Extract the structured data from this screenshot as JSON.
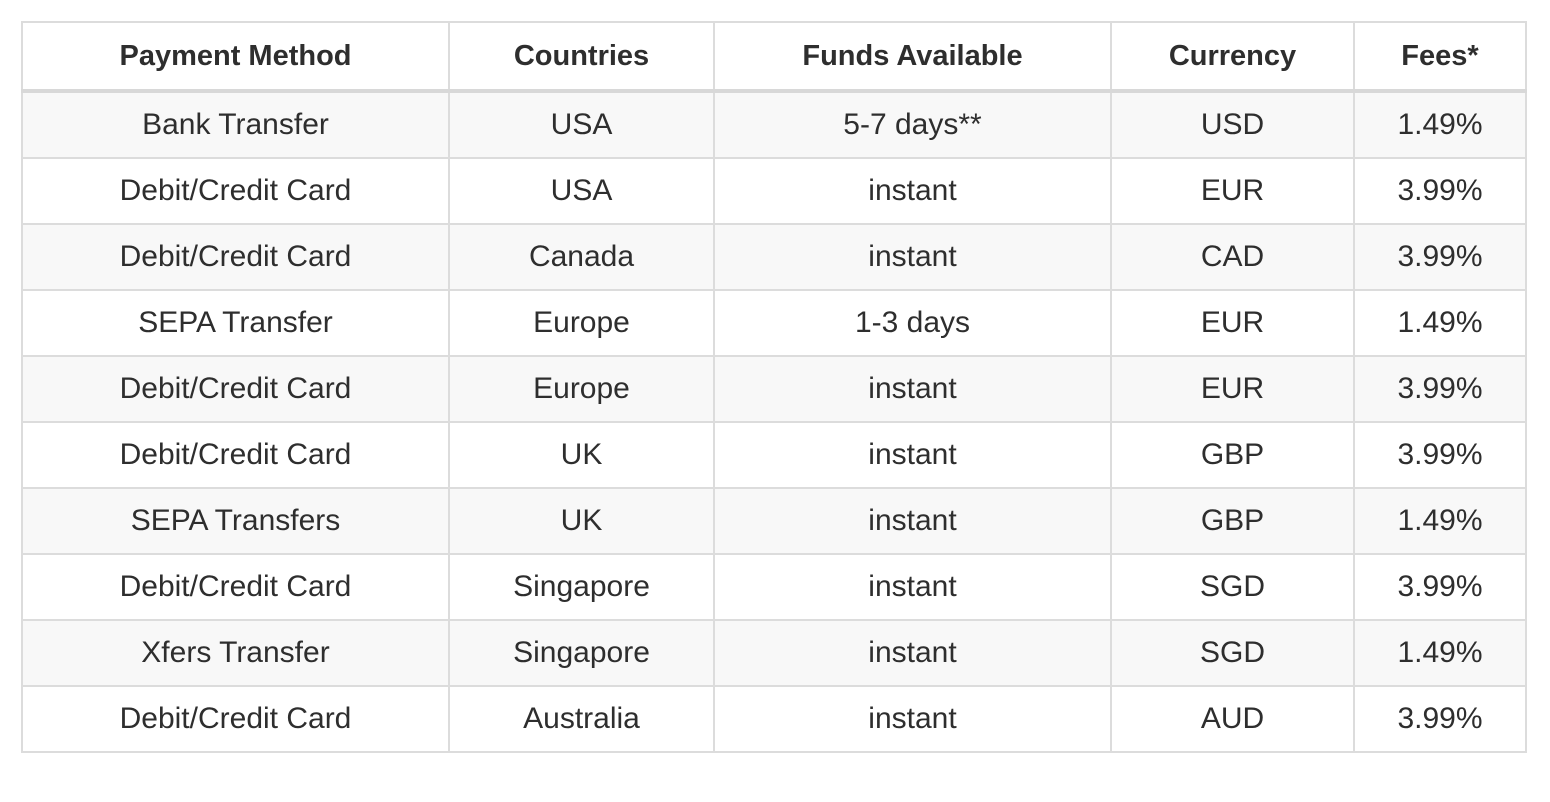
{
  "table": {
    "headers": [
      "Payment Method",
      "Countries",
      "Funds Available",
      "Currency",
      "Fees*"
    ],
    "rows": [
      [
        "Bank Transfer",
        "USA",
        "5-7 days**",
        "USD",
        "1.49%"
      ],
      [
        "Debit/Credit Card",
        "USA",
        "instant",
        "EUR",
        "3.99%"
      ],
      [
        "Debit/Credit Card",
        "Canada",
        "instant",
        "CAD",
        "3.99%"
      ],
      [
        "SEPA Transfer",
        "Europe",
        "1-3 days",
        "EUR",
        "1.49%"
      ],
      [
        "Debit/Credit Card",
        "Europe",
        "instant",
        "EUR",
        "3.99%"
      ],
      [
        "Debit/Credit Card",
        "UK",
        "instant",
        "GBP",
        "3.99%"
      ],
      [
        "SEPA Transfers",
        "UK",
        "instant",
        "GBP",
        "1.49%"
      ],
      [
        "Debit/Credit Card",
        "Singapore",
        "instant",
        "SGD",
        "3.99%"
      ],
      [
        "Xfers Transfer",
        "Singapore",
        "instant",
        "SGD",
        "1.49%"
      ],
      [
        "Debit/Credit Card",
        "Australia",
        "instant",
        "AUD",
        "3.99%"
      ]
    ]
  }
}
